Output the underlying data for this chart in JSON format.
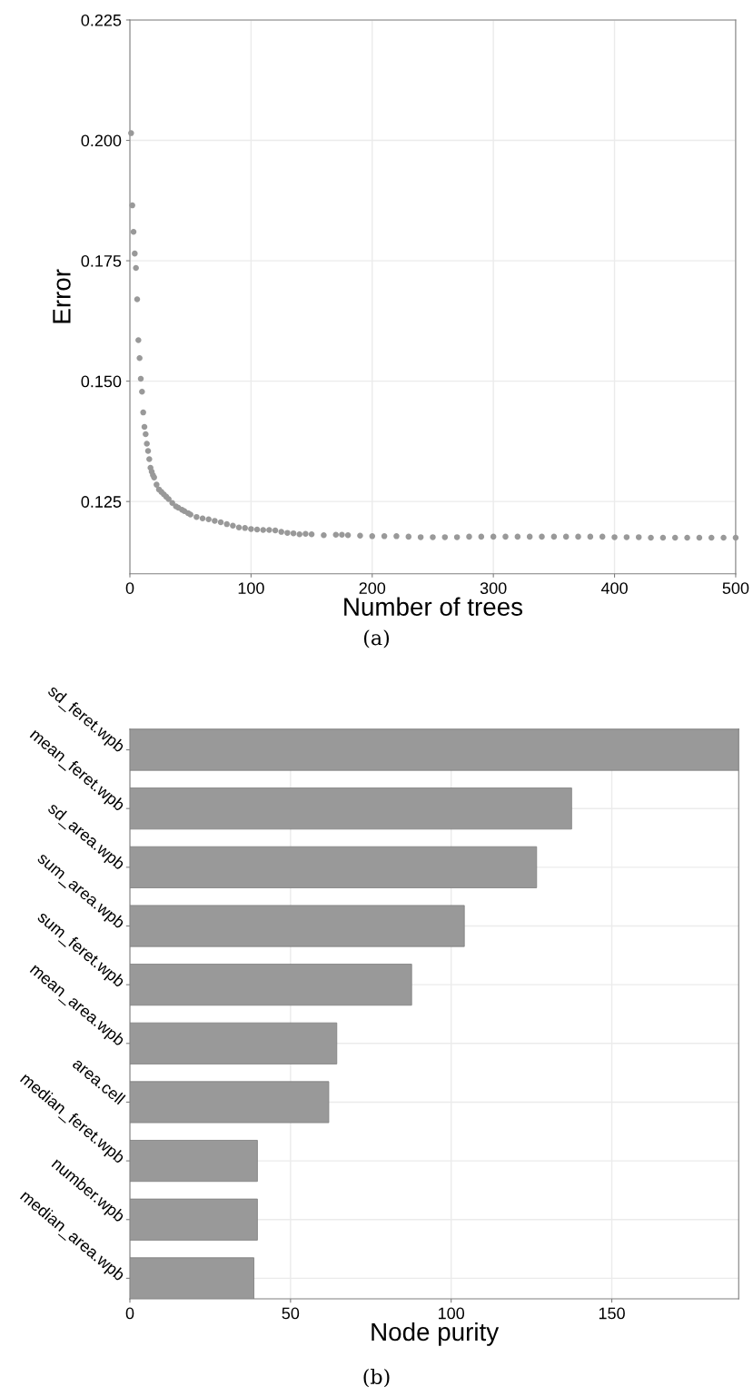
{
  "chart_data": [
    {
      "type": "scatter",
      "xlabel": "Number of trees",
      "ylabel": "Error",
      "annotations": [
        "(a)"
      ],
      "x": [
        1,
        2,
        3,
        4,
        5,
        6,
        7,
        8,
        9,
        10,
        11,
        12,
        13,
        14,
        15,
        16,
        17,
        18,
        19,
        20,
        22,
        24,
        26,
        28,
        30,
        32,
        35,
        38,
        40,
        43,
        45,
        48,
        50,
        55,
        60,
        65,
        70,
        75,
        80,
        85,
        90,
        95,
        100,
        105,
        110,
        115,
        120,
        125,
        130,
        135,
        140,
        145,
        150,
        160,
        170,
        175,
        180,
        190,
        200,
        210,
        220,
        230,
        240,
        250,
        260,
        270,
        280,
        290,
        300,
        310,
        320,
        330,
        340,
        350,
        360,
        370,
        380,
        390,
        400,
        410,
        420,
        430,
        440,
        450,
        460,
        470,
        480,
        490,
        500
      ],
      "series": [
        {
          "color": "#999999",
          "values": [
            0.2015,
            0.1865,
            0.181,
            0.1765,
            0.1735,
            0.167,
            0.1585,
            0.1548,
            0.1505,
            0.1478,
            0.1435,
            0.1405,
            0.139,
            0.137,
            0.1355,
            0.1338,
            0.132,
            0.1312,
            0.1305,
            0.13,
            0.1285,
            0.1275,
            0.127,
            0.1265,
            0.126,
            0.1255,
            0.1247,
            0.124,
            0.1237,
            0.1233,
            0.123,
            0.1226,
            0.1223,
            0.1218,
            0.1215,
            0.1213,
            0.121,
            0.1207,
            0.1203,
            0.12,
            0.1196,
            0.1195,
            0.1193,
            0.1192,
            0.1191,
            0.1191,
            0.119,
            0.1187,
            0.1185,
            0.1184,
            0.1182,
            0.1183,
            0.1182,
            0.118,
            0.1181,
            0.1181,
            0.118,
            0.1179,
            0.1178,
            0.1178,
            0.1178,
            0.1177,
            0.1176,
            0.1176,
            0.1176,
            0.1176,
            0.1177,
            0.1177,
            0.1177,
            0.1177,
            0.1177,
            0.1177,
            0.1177,
            0.1177,
            0.1177,
            0.1177,
            0.1177,
            0.1177,
            0.1176,
            0.1176,
            0.1176,
            0.1175,
            0.1175,
            0.1175,
            0.1175,
            0.1175,
            0.1175,
            0.1175,
            0.1175
          ]
        }
      ],
      "xlim": [
        0,
        500
      ],
      "xticks": [
        0,
        100,
        200,
        300,
        400,
        500
      ],
      "ylim": [
        0.11,
        0.225
      ],
      "yticks": [
        {
          "value": 0.125,
          "label": "0.125"
        },
        {
          "value": 0.15,
          "label": "0.150"
        },
        {
          "value": 0.175,
          "label": "0.175"
        },
        {
          "value": 0.2,
          "label": "0.200"
        },
        {
          "value": 0.225,
          "label": "0.225"
        }
      ],
      "grid": true,
      "marker": "circle"
    },
    {
      "type": "bar",
      "orientation": "horizontal",
      "xlabel": "Node purity",
      "annotations": [
        "(b)"
      ],
      "categories": [
        "sd_feret.wpb",
        "mean_feret.wpb",
        "sd_area.wpb",
        "sum_area.wpb",
        "sum_feret.wpb",
        "mean_area.wpb",
        "area.cell",
        "median_feret.wpb",
        "number.wpb",
        "median_area.wpb"
      ],
      "values": [
        189.5,
        137.5,
        126.6,
        104.1,
        87.7,
        64.4,
        61.9,
        39.7,
        39.7,
        38.6
      ],
      "color": "#999999",
      "xlim": [
        0,
        189.5
      ],
      "xticks": [
        0,
        50,
        100,
        150
      ],
      "grid": true
    }
  ]
}
